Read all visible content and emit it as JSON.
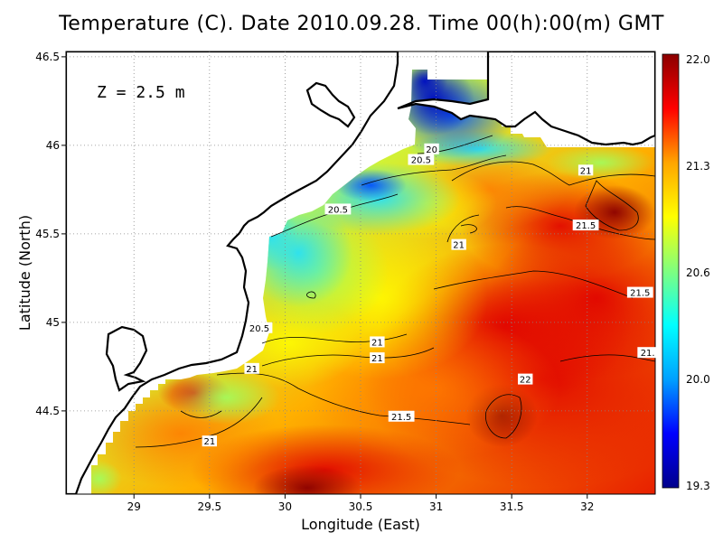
{
  "title": "Temperature (C). Date 2010.09.28. Time 00(h):00(m) GMT",
  "depth_label": "Z = 2.5 m",
  "x_axis": {
    "label": "Longitude (East)",
    "ticks": [
      "29",
      "29.5",
      "30",
      "30.5",
      "31",
      "31.5",
      "32"
    ],
    "range": [
      28.55,
      32.45
    ]
  },
  "y_axis": {
    "label": "Latitude (North)",
    "ticks": [
      "44.5",
      "45",
      "45.5",
      "46",
      "46.5"
    ],
    "range": [
      44.03,
      46.53
    ]
  },
  "colorbar": {
    "labels": [
      "22.0",
      "21.3",
      "20.6",
      "20.0",
      "19.3"
    ],
    "min": 19.3,
    "max": 22.0,
    "colors": [
      "#00008b",
      "#0000ff",
      "#00a0ff",
      "#00ffff",
      "#7fff7f",
      "#ffff00",
      "#ffa500",
      "#ff0000",
      "#8b0000"
    ]
  },
  "contour_labels": [
    {
      "text": "20",
      "lon": 30.97,
      "lat": 45.98
    },
    {
      "text": "20.5",
      "lon": 30.9,
      "lat": 45.92
    },
    {
      "text": "20.5",
      "lon": 30.35,
      "lat": 45.64
    },
    {
      "text": "21",
      "lon": 31.99,
      "lat": 45.86
    },
    {
      "text": "21",
      "lon": 31.15,
      "lat": 45.44
    },
    {
      "text": "21.5",
      "lon": 31.99,
      "lat": 45.55
    },
    {
      "text": "21.5",
      "lon": 32.35,
      "lat": 45.17
    },
    {
      "text": "20.5",
      "lon": 29.83,
      "lat": 44.97
    },
    {
      "text": "21",
      "lon": 30.61,
      "lat": 44.89
    },
    {
      "text": "21",
      "lon": 30.61,
      "lat": 44.8
    },
    {
      "text": "21",
      "lon": 29.78,
      "lat": 44.74
    },
    {
      "text": "21.",
      "lon": 32.4,
      "lat": 44.83
    },
    {
      "text": "22",
      "lon": 31.59,
      "lat": 44.68
    },
    {
      "text": "21.5",
      "lon": 30.77,
      "lat": 44.47
    },
    {
      "text": "21",
      "lon": 29.5,
      "lat": 44.33
    }
  ]
}
